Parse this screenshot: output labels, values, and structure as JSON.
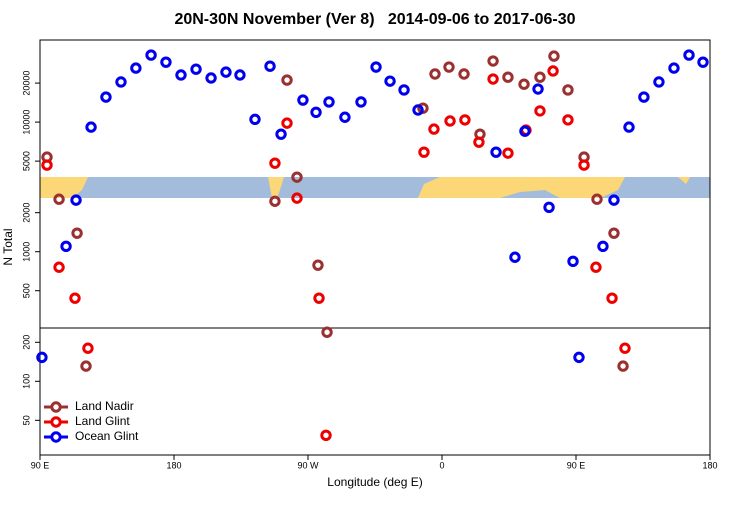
{
  "chart_data": {
    "type": "scatter",
    "title": "20N-30N November (Ver 8)   2014-09-06 to 2017-06-30",
    "x_label": "Longitude (deg E)",
    "y_label": "N Total",
    "xlim": [
      90,
      540
    ],
    "xticks": [
      {
        "value": 90,
        "label": "90 E"
      },
      180,
      {
        "value": 270,
        "label": "90 W"
      },
      {
        "value": 360,
        "label": "0"
      },
      {
        "value": 450,
        "label": "90 E"
      },
      {
        "value": 540,
        "label": "180"
      }
    ],
    "ylim": [
      27,
      43000
    ],
    "log_y": true,
    "yticks": [
      50,
      100,
      200,
      500,
      1000,
      2000,
      5000,
      10000,
      20000
    ],
    "legend": "bottom-left",
    "series": [
      {
        "name": "Land Nadir",
        "color": "#9b3030",
        "x": [
          94.7,
          102.8,
          114.9,
          120.9,
          247.8,
          255.9,
          262.6,
          276.7,
          282.8,
          347.2,
          355.3,
          364.7,
          374.8,
          385.5,
          394.3,
          404.3,
          415.1,
          425.8,
          435.2,
          444.6,
          455.4,
          464.1,
          475.5,
          481.6
        ],
        "values": [
          5370,
          2540,
          1390,
          131,
          2450,
          21100,
          3760,
          787,
          239,
          12800,
          23500,
          26600,
          23500,
          8070,
          29600,
          22200,
          19600,
          22200,
          32300,
          17700,
          5370,
          2540,
          1390,
          131
        ]
      },
      {
        "name": "Land Glint",
        "color": "#ee0000",
        "x": [
          94.7,
          102.8,
          113.5,
          122.2,
          247.8,
          255.9,
          262.6,
          277.4,
          282.1,
          347.9,
          354.6,
          365.4,
          375.4,
          384.8,
          394.3,
          404.3,
          416.4,
          425.8,
          434.6,
          444.6,
          455.4,
          463.4,
          474.2,
          482.9
        ],
        "values": [
          4660,
          759,
          438,
          180,
          4820,
          9820,
          2590,
          438,
          38.3,
          5860,
          8830,
          10200,
          10400,
          7000,
          21500,
          5760,
          8670,
          12200,
          24800,
          10400,
          4660,
          759,
          438,
          180
        ]
      },
      {
        "name": "Ocean Glint",
        "color": "#0000ee",
        "x": [
          91.3,
          107.5,
          114.2,
          124.3,
          134.3,
          144.4,
          154.4,
          164.6,
          174.6,
          184.7,
          194.8,
          204.9,
          214.9,
          224.3,
          234.4,
          244.5,
          251.9,
          266.6,
          275.4,
          284.1,
          294.8,
          305.6,
          315.7,
          325.1,
          334.5,
          343.9,
          396.3,
          409.0,
          415.7,
          424.5,
          431.9,
          448.0,
          452.0,
          468.1,
          475.5,
          485.6,
          495.6,
          505.7,
          515.8,
          525.9,
          535.3
        ],
        "values": [
          153,
          1100,
          2500,
          9150,
          15600,
          20400,
          26100,
          32900,
          29000,
          23100,
          25600,
          21900,
          24300,
          23100,
          10500,
          27000,
          8070,
          14800,
          11900,
          14300,
          10900,
          14300,
          26600,
          20700,
          17700,
          12400,
          5860,
          906,
          8510,
          18000,
          2200,
          843,
          153,
          1100,
          2500,
          9150,
          15600,
          20400,
          26100,
          32900,
          29000
        ]
      }
    ]
  }
}
